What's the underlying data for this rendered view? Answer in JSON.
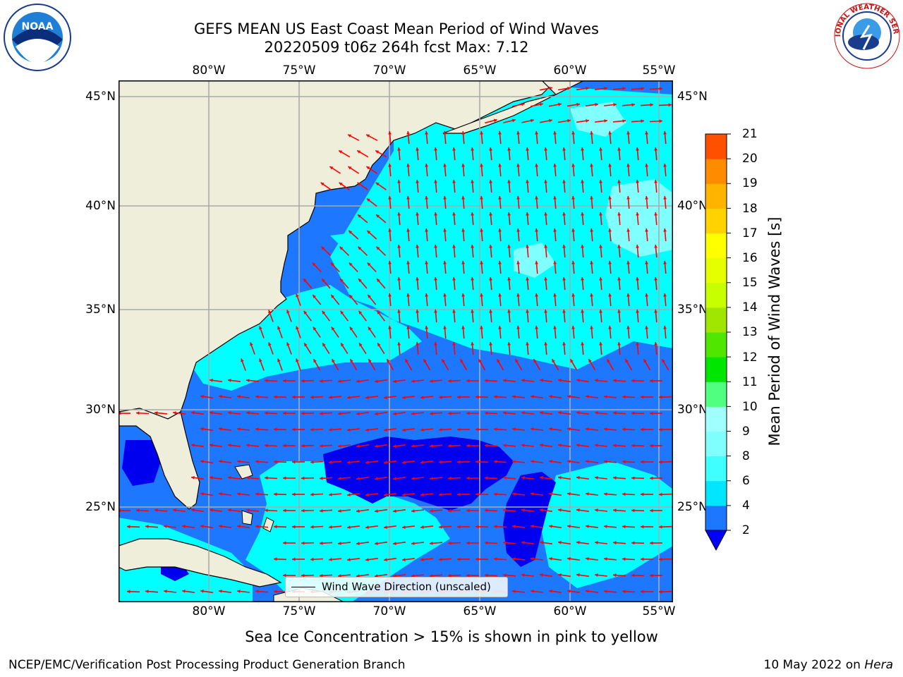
{
  "title_line1": "GEFS MEAN US East Coast Mean Period of Wind Waves",
  "title_line2": "20220509 t06z 264h fcst   Max: 7.12",
  "lon_labels": [
    "80°W",
    "75°W",
    "70°W",
    "65°W",
    "60°W",
    "55°W"
  ],
  "lat_labels": [
    "45°N",
    "40°N",
    "35°N",
    "30°N",
    "25°N"
  ],
  "legend_label": "Wind Wave Direction (unscaled)",
  "colorbar": {
    "label": "Mean Period of Wind Waves [s]",
    "ticks": [
      "2",
      "4",
      "6",
      "8",
      "9",
      "10",
      "11",
      "12",
      "13",
      "14",
      "15",
      "16",
      "17",
      "18",
      "19",
      "20",
      "21"
    ],
    "colors": [
      "#1e78ff",
      "#00e6ff",
      "#40ffff",
      "#80ffff",
      "#a0ffff",
      "#50ff80",
      "#00e600",
      "#50e600",
      "#a0e600",
      "#c8ff00",
      "#e6ff00",
      "#ffff00",
      "#ffd200",
      "#ffb400",
      "#ff8c00",
      "#ff5000",
      "#ff2800",
      "#ff0000"
    ],
    "under_color": "#0000ff"
  },
  "map_colors": {
    "land": "#efeedb",
    "ocean_low": "#1e78ff",
    "ocean_mid": "#00ffff",
    "ocean_high": "#80ffff",
    "ocean_deep": "#0000ee",
    "arrow": "#ff0000",
    "grid": "#aaaaaa"
  },
  "sea_ice_note": "Sea Ice Concentration > 15% is shown in pink to yellow",
  "footer_left": "NCEP/EMC/Verification Post Processing Product Generation Branch",
  "footer_date": "10 May 2022 on ",
  "footer_host": "Hera",
  "logos": {
    "left": "NOAA",
    "right": "NATIONAL WEATHER SERVICE"
  }
}
